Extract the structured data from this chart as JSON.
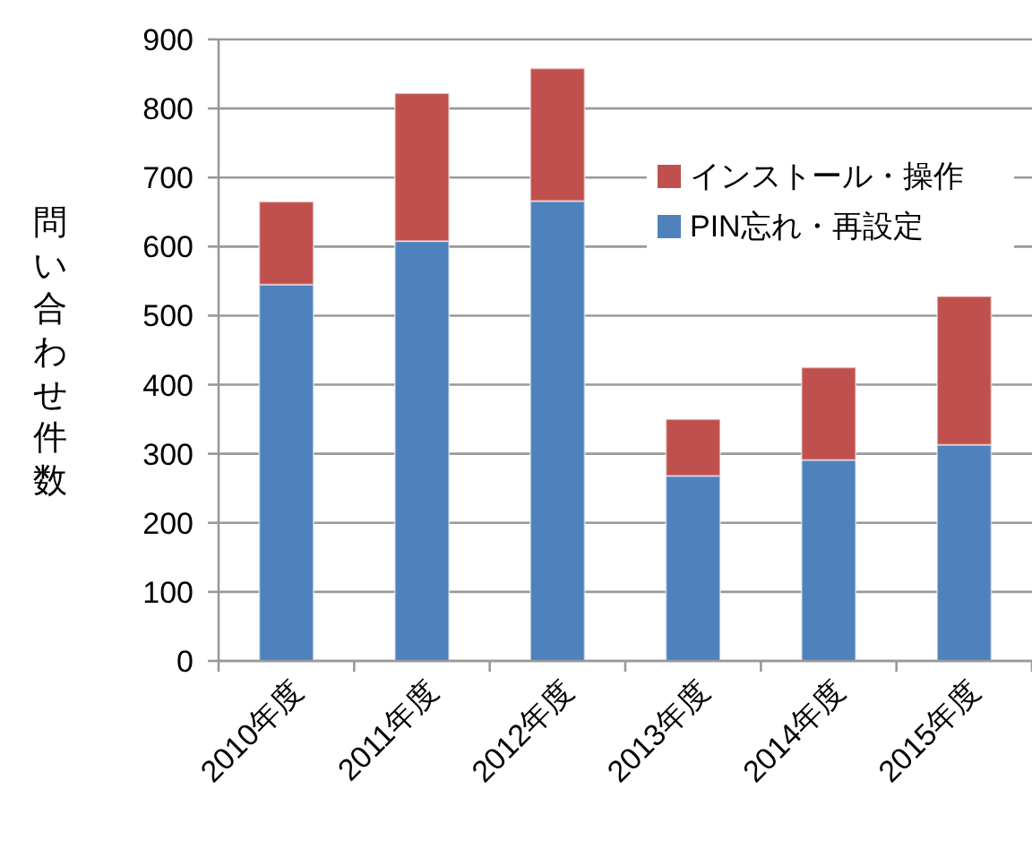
{
  "chart_data": {
    "type": "bar",
    "stacked": true,
    "ylabel": "問い合わせ件数",
    "categories": [
      "2010年度",
      "2011年度",
      "2012年度",
      "2013年度",
      "2014年度",
      "2015年度"
    ],
    "series": [
      {
        "name": "PIN忘れ・再設定",
        "color": "#4f81bd",
        "values": [
          545,
          608,
          666,
          268,
          291,
          313
        ]
      },
      {
        "name": "インストール・操作",
        "color": "#c0504d",
        "values": [
          120,
          214,
          192,
          82,
          134,
          215
        ]
      }
    ],
    "ylim": [
      0,
      900
    ],
    "yticks": [
      0,
      100,
      200,
      300,
      400,
      500,
      600,
      700,
      800,
      900
    ],
    "grid": "y",
    "legend": "right"
  }
}
